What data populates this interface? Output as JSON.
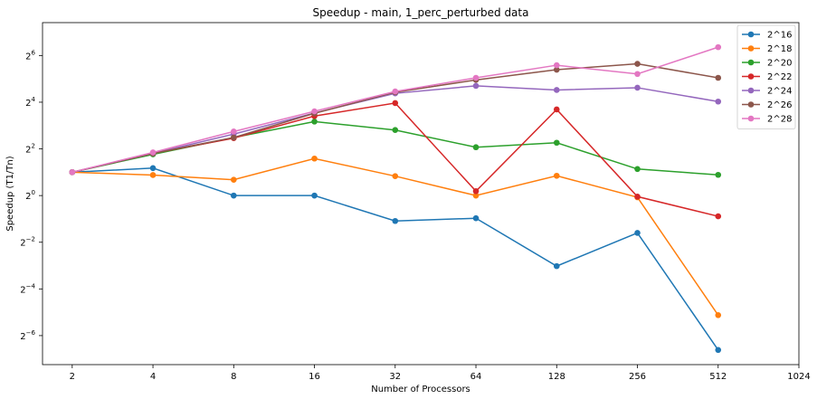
{
  "chart_data": {
    "type": "line",
    "title": "Speedup - main, 1_perc_perturbed data",
    "xlabel": "Number of Processors",
    "ylabel": "Speedup (T1/Tn)",
    "x_scale": "log2",
    "y_scale": "log2",
    "x": [
      2,
      4,
      8,
      16,
      32,
      64,
      128,
      256,
      512
    ],
    "x_ticks": [
      {
        "value": 2,
        "label": "2"
      },
      {
        "value": 4,
        "label": "4"
      },
      {
        "value": 8,
        "label": "8"
      },
      {
        "value": 16,
        "label": "16"
      },
      {
        "value": 32,
        "label": "32"
      },
      {
        "value": 64,
        "label": "64"
      },
      {
        "value": 128,
        "label": "128"
      },
      {
        "value": 256,
        "label": "256"
      },
      {
        "value": 512,
        "label": "512"
      },
      {
        "value": 1024,
        "label": "1024"
      }
    ],
    "y_ticks": [
      {
        "exp": 6,
        "base": "2",
        "sup": "6"
      },
      {
        "exp": 4,
        "base": "2",
        "sup": "4"
      },
      {
        "exp": 2,
        "base": "2",
        "sup": "2"
      },
      {
        "exp": 0,
        "base": "2",
        "sup": "0"
      },
      {
        "exp": -2,
        "base": "2",
        "sup": "−2"
      },
      {
        "exp": -4,
        "base": "2",
        "sup": "−4"
      },
      {
        "exp": -6,
        "base": "2",
        "sup": "−6"
      }
    ],
    "xlim": [
      1.55,
      1024
    ],
    "ylim": [
      0.0066,
      170
    ],
    "grid": false,
    "legend_position": "upper-right",
    "series": [
      {
        "name": "2^16",
        "color": "#1f77b4",
        "values": [
          2.0,
          2.26,
          1.0,
          1.0,
          0.47,
          0.51,
          0.123,
          0.33,
          0.0102
        ]
      },
      {
        "name": "2^18",
        "color": "#ff7f0e",
        "values": [
          2.0,
          1.84,
          1.6,
          3.0,
          1.78,
          1.0,
          1.8,
          0.95,
          0.0287
        ]
      },
      {
        "name": "2^20",
        "color": "#2ca02c",
        "values": [
          2.0,
          3.4,
          5.6,
          9.0,
          7.0,
          4.2,
          4.8,
          2.2,
          1.85
        ]
      },
      {
        "name": "2^22",
        "color": "#d62728",
        "values": [
          2.0,
          3.5,
          5.5,
          10.6,
          15.6,
          1.14,
          12.9,
          0.97,
          0.54
        ]
      },
      {
        "name": "2^24",
        "color": "#9467bd",
        "values": [
          2.0,
          3.5,
          6.2,
          11.6,
          20.8,
          26.0,
          23.0,
          24.6,
          16.3
        ]
      },
      {
        "name": "2^26",
        "color": "#8c564b",
        "values": [
          2.0,
          3.5,
          5.6,
          11.5,
          21.5,
          31.0,
          42.0,
          50.0,
          33.0
        ]
      },
      {
        "name": "2^28",
        "color": "#e377c2",
        "values": [
          2.0,
          3.6,
          6.7,
          12.2,
          22.0,
          33.0,
          48.0,
          37.0,
          82.0
        ]
      }
    ]
  }
}
